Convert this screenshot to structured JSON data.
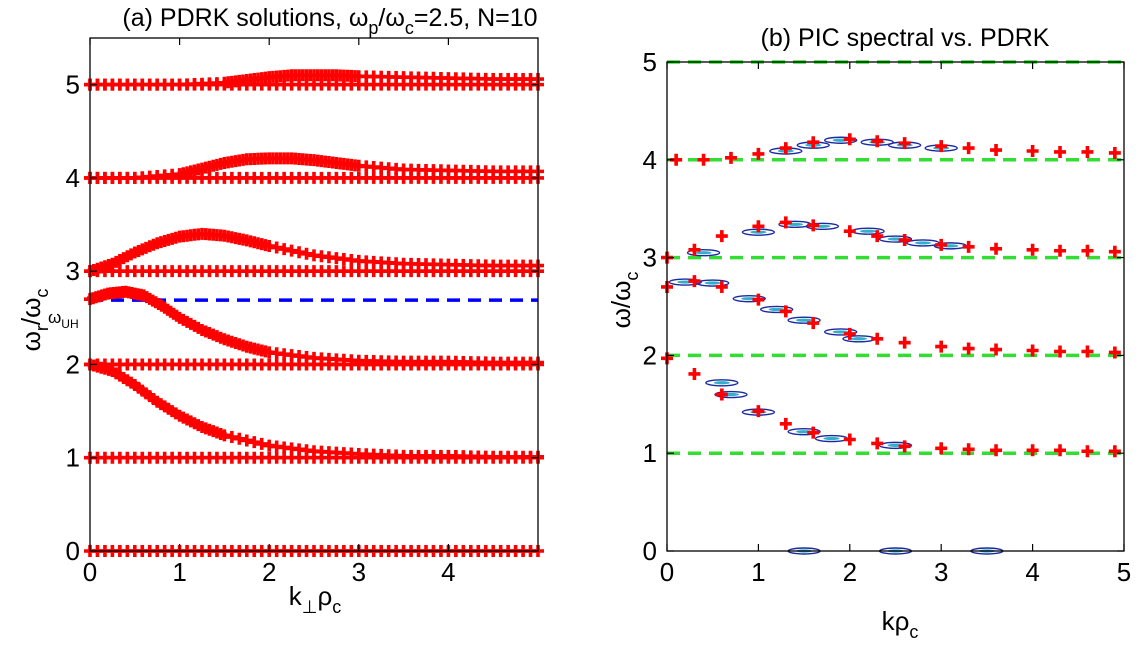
{
  "figure": {
    "panel_a_title": "(a) PDRK solutions, ω",
    "panel_a_title_p": "p",
    "panel_a_title_slash": "/ω",
    "panel_a_title_c": "c",
    "panel_a_title_rest": "=2.5, N=10",
    "panel_b_title": "(b) PIC spectral vs. PDRK",
    "panel_a_ylabel_main": "ω",
    "panel_a_ylabel_r": "r",
    "panel_a_ylabel_slash": "/ω",
    "panel_a_ylabel_c": "c",
    "panel_a_xlabel_main": "k",
    "panel_a_xlabel_perp": "⊥",
    "panel_a_xlabel_rho": "ρ",
    "panel_a_xlabel_c": "c",
    "panel_b_ylabel_main": "ω/ω",
    "panel_b_ylabel_c": "c",
    "panel_b_xlabel_main": "kρ",
    "panel_b_xlabel_c": "c",
    "uh_label_omega": "ω",
    "uh_label_sub": "UH"
  },
  "chart_data": [
    {
      "type": "line",
      "title": "(a) PDRK solutions, ωp/ωc=2.5, N=10",
      "xlabel": "k⊥ρc",
      "ylabel": "ωr/ωc",
      "xlim": [
        0,
        5
      ],
      "ylim": [
        0,
        5.5
      ],
      "xticks": [
        0,
        1,
        2,
        3,
        4
      ],
      "yticks": [
        0,
        1,
        2,
        3,
        4,
        5
      ],
      "reference_lines": [
        {
          "label": "ωUH",
          "y": 2.69,
          "color": "#0000ff",
          "style": "dashed"
        },
        {
          "y": 0,
          "color": "#00ff00",
          "style": "dashed"
        },
        {
          "y": 1,
          "color": "#00ff00",
          "style": "dashed"
        },
        {
          "y": 2,
          "color": "#00ff00",
          "style": "dashed"
        },
        {
          "y": 3,
          "color": "#00ff00",
          "style": "dashed"
        },
        {
          "y": 4,
          "color": "#00ff00",
          "style": "dashed"
        },
        {
          "y": 5,
          "color": "#00ff00",
          "style": "dashed"
        }
      ],
      "marker": "+",
      "marker_color": "#ff0000",
      "series": [
        {
          "x": [
            0,
            0.5,
            1,
            1.5,
            2,
            2.5,
            3,
            3.5,
            4,
            4.5,
            5
          ],
          "values": [
            0,
            0,
            0,
            0,
            0,
            0,
            0,
            0,
            0,
            0,
            0
          ]
        },
        {
          "x": [
            0,
            0.5,
            1,
            1.5,
            2,
            2.5,
            3,
            3.5,
            4,
            4.5,
            5
          ],
          "values": [
            1,
            1,
            1,
            1,
            1,
            1,
            1,
            1,
            1,
            1,
            1
          ]
        },
        {
          "x": [
            0,
            0.25,
            0.5,
            0.75,
            1,
            1.25,
            1.5,
            2,
            2.5,
            3,
            3.5,
            4,
            4.5,
            5
          ],
          "values": [
            2,
            1.93,
            1.78,
            1.6,
            1.45,
            1.33,
            1.24,
            1.13,
            1.07,
            1.04,
            1.02,
            1.02,
            1.01,
            1.01
          ]
        },
        {
          "x": [
            0,
            0.5,
            1,
            1.5,
            2,
            2.5,
            3,
            3.5,
            4,
            4.5,
            5
          ],
          "values": [
            2,
            2,
            2,
            2,
            2,
            2,
            2,
            2,
            2,
            2,
            2
          ]
        },
        {
          "x": [
            0,
            0.2,
            0.4,
            0.6,
            0.8,
            1,
            1.25,
            1.5,
            1.75,
            2,
            2.5,
            3,
            3.5,
            4,
            4.5,
            5
          ],
          "values": [
            2.7,
            2.76,
            2.78,
            2.74,
            2.63,
            2.5,
            2.37,
            2.27,
            2.19,
            2.13,
            2.07,
            2.04,
            2.03,
            2.03,
            2.02,
            2.02
          ]
        },
        {
          "x": [
            0,
            0.5,
            1,
            1.5,
            2,
            2.5,
            3,
            3.5,
            4,
            4.5,
            5
          ],
          "values": [
            3,
            3,
            3,
            3,
            3,
            3,
            3,
            3,
            3,
            3,
            3
          ]
        },
        {
          "x": [
            0,
            0.25,
            0.5,
            0.75,
            1,
            1.25,
            1.5,
            1.75,
            2,
            2.5,
            3,
            3.5,
            4,
            4.5,
            5
          ],
          "values": [
            3,
            3.08,
            3.2,
            3.3,
            3.37,
            3.4,
            3.38,
            3.33,
            3.27,
            3.17,
            3.11,
            3.08,
            3.07,
            3.06,
            3.06
          ]
        },
        {
          "x": [
            0,
            0.5,
            1,
            1.5,
            2,
            2.5,
            3,
            3.5,
            4,
            4.5,
            5
          ],
          "values": [
            4,
            4,
            4,
            4,
            4,
            4,
            4,
            4,
            4,
            4,
            4
          ]
        },
        {
          "x": [
            0,
            0.5,
            1,
            1.25,
            1.5,
            1.75,
            2,
            2.25,
            2.5,
            2.75,
            3,
            3.5,
            4,
            4.5,
            5
          ],
          "values": [
            4,
            4,
            4.04,
            4.1,
            4.16,
            4.2,
            4.21,
            4.21,
            4.19,
            4.16,
            4.13,
            4.09,
            4.08,
            4.07,
            4.07
          ]
        },
        {
          "x": [
            0,
            0.5,
            1,
            1.5,
            2,
            2.5,
            3,
            3.5,
            4,
            4.5,
            5
          ],
          "values": [
            5,
            5,
            5,
            5,
            5,
            5,
            5,
            5,
            5,
            5,
            5
          ]
        },
        {
          "x": [
            0,
            0.5,
            1,
            1.5,
            1.75,
            2,
            2.25,
            2.5,
            2.75,
            3,
            3.5,
            4,
            4.5,
            5
          ],
          "values": [
            5,
            5,
            5,
            5.02,
            5.05,
            5.08,
            5.1,
            5.1,
            5.1,
            5.09,
            5.08,
            5.07,
            5.06,
            5.06
          ]
        }
      ]
    },
    {
      "type": "scatter",
      "title": "(b) PIC spectral vs. PDRK",
      "xlabel": "kρc",
      "ylabel": "ω/ωc",
      "xlim": [
        0,
        5
      ],
      "ylim": [
        0,
        5
      ],
      "xticks": [
        0,
        1,
        2,
        3,
        4,
        5
      ],
      "yticks": [
        0,
        1,
        2,
        3,
        4,
        5
      ],
      "reference_lines": [
        {
          "y": 1,
          "color": "#00ff00",
          "style": "dashed"
        },
        {
          "y": 2,
          "color": "#00ff00",
          "style": "dashed"
        },
        {
          "y": 3,
          "color": "#00ff00",
          "style": "dashed"
        },
        {
          "y": 4,
          "color": "#00ff00",
          "style": "dashed"
        },
        {
          "y": 5,
          "color": "#00ff00",
          "style": "dashed"
        }
      ],
      "marker": "+",
      "marker_color": "#ff0000",
      "series": [
        {
          "x": [
            0,
            0.3,
            0.6,
            1,
            1.3,
            1.6,
            2,
            2.3,
            2.6,
            3,
            3.3,
            3.6,
            4,
            4.3,
            4.6,
            4.9
          ],
          "values": [
            1.97,
            1.81,
            1.6,
            1.43,
            1.3,
            1.21,
            1.14,
            1.1,
            1.07,
            1.05,
            1.04,
            1.03,
            1.03,
            1.03,
            1.02,
            1.02
          ]
        },
        {
          "x": [
            0,
            0.3,
            0.6,
            1,
            1.3,
            1.6,
            2,
            2.3,
            2.6,
            3,
            3.3,
            3.6,
            4,
            4.3,
            4.6,
            4.9
          ],
          "values": [
            2.7,
            2.76,
            2.7,
            2.57,
            2.45,
            2.33,
            2.22,
            2.17,
            2.13,
            2.09,
            2.07,
            2.06,
            2.05,
            2.04,
            2.04,
            2.03
          ]
        },
        {
          "x": [
            0,
            0.3,
            0.6,
            1,
            1.3,
            1.6,
            2,
            2.3,
            2.6,
            3,
            3.3,
            3.6,
            4,
            4.3,
            4.6,
            4.9
          ],
          "values": [
            3,
            3.08,
            3.22,
            3.32,
            3.36,
            3.33,
            3.27,
            3.22,
            3.18,
            3.13,
            3.11,
            3.09,
            3.08,
            3.07,
            3.07,
            3.06
          ]
        },
        {
          "x": [
            0.1,
            0.4,
            0.7,
            1,
            1.3,
            1.6,
            2,
            2.3,
            2.6,
            3,
            3.3,
            3.6,
            4,
            4.3,
            4.6,
            4.9
          ],
          "values": [
            4,
            4.0,
            4.02,
            4.06,
            4.12,
            4.18,
            4.21,
            4.19,
            4.17,
            4.14,
            4.12,
            4.1,
            4.09,
            4.08,
            4.08,
            4.07
          ]
        }
      ],
      "contours": [
        {
          "x": 0.2,
          "y": 2.75
        },
        {
          "x": 0.4,
          "y": 3.05
        },
        {
          "x": 0.5,
          "y": 2.74
        },
        {
          "x": 0.6,
          "y": 1.72
        },
        {
          "x": 0.7,
          "y": 1.6
        },
        {
          "x": 0.9,
          "y": 2.58
        },
        {
          "x": 1.0,
          "y": 1.42
        },
        {
          "x": 1.0,
          "y": 3.26
        },
        {
          "x": 1.2,
          "y": 2.47
        },
        {
          "x": 1.4,
          "y": 3.34
        },
        {
          "x": 1.5,
          "y": 2.36
        },
        {
          "x": 1.5,
          "y": 1.22
        },
        {
          "x": 1.7,
          "y": 3.32
        },
        {
          "x": 1.8,
          "y": 1.15
        },
        {
          "x": 1.9,
          "y": 2.24
        },
        {
          "x": 2.1,
          "y": 2.17
        },
        {
          "x": 2.2,
          "y": 3.27
        },
        {
          "x": 2.5,
          "y": 1.08
        },
        {
          "x": 2.5,
          "y": 3.19
        },
        {
          "x": 2.8,
          "y": 3.15
        },
        {
          "x": 3.1,
          "y": 3.12
        },
        {
          "x": 1.3,
          "y": 4.09
        },
        {
          "x": 1.6,
          "y": 4.15
        },
        {
          "x": 1.9,
          "y": 4.2
        },
        {
          "x": 2.3,
          "y": 4.18
        },
        {
          "x": 2.6,
          "y": 4.15
        },
        {
          "x": 3.0,
          "y": 4.12
        },
        {
          "x": 1.5,
          "y": 0.0
        },
        {
          "x": 2.5,
          "y": 0.0
        },
        {
          "x": 3.5,
          "y": 0.0
        }
      ]
    }
  ]
}
